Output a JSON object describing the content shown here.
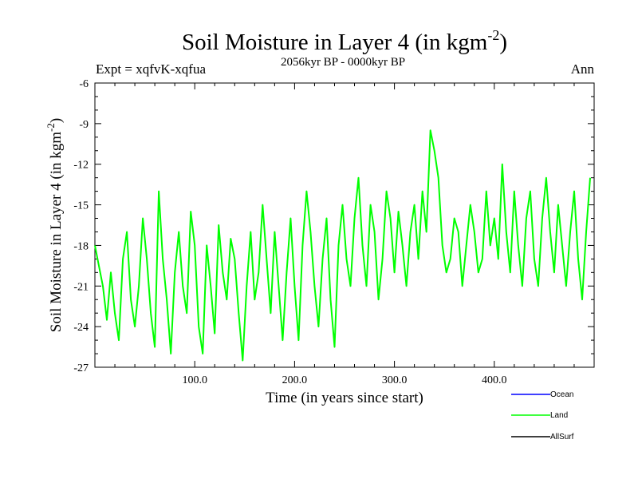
{
  "chart_data": {
    "type": "line",
    "title": "Soil Moisture in Layer 4 (in kgm",
    "title_sup": "-2",
    "title_close": ")",
    "subtitle": "2056kyr BP - 0000kyr BP",
    "experiment": "Expt = xqfvK-xqfua",
    "season": "Ann",
    "xlabel": "Time (in years since start)",
    "ylabel": "Soil Moisture in Layer 4 (in kgm",
    "ylabel_sup": "-2",
    "ylabel_close": ")",
    "xlim": [
      0,
      500
    ],
    "ylim": [
      -27,
      -6
    ],
    "x_ticks": [
      100,
      200,
      300,
      400
    ],
    "x_tick_labels": [
      "100.0",
      "200.0",
      "300.0",
      "400.0"
    ],
    "y_ticks": [
      -27,
      -24,
      -21,
      -18,
      -15,
      -12,
      -9,
      -6
    ],
    "y_tick_labels": [
      "-27",
      "-24",
      "-21",
      "-18",
      "-15",
      "-12",
      "-9",
      "-6"
    ],
    "legend": [
      "Ocean",
      "Land",
      "AllSurf"
    ],
    "series": [
      {
        "name": "Ocean",
        "color": "#0000ff",
        "values": []
      },
      {
        "name": "Land",
        "color": "#00ff00",
        "values": [
          [
            0,
            -18
          ],
          [
            4,
            -19.5
          ],
          [
            8,
            -21
          ],
          [
            12,
            -23.5
          ],
          [
            16,
            -20
          ],
          [
            20,
            -23
          ],
          [
            24,
            -25
          ],
          [
            28,
            -19
          ],
          [
            32,
            -17
          ],
          [
            36,
            -22
          ],
          [
            40,
            -24
          ],
          [
            44,
            -21
          ],
          [
            48,
            -16
          ],
          [
            52,
            -19
          ],
          [
            56,
            -23
          ],
          [
            60,
            -25.5
          ],
          [
            64,
            -14
          ],
          [
            68,
            -19
          ],
          [
            72,
            -22
          ],
          [
            76,
            -26
          ],
          [
            80,
            -20
          ],
          [
            84,
            -17
          ],
          [
            88,
            -21
          ],
          [
            92,
            -23
          ],
          [
            96,
            -15.5
          ],
          [
            100,
            -18
          ],
          [
            104,
            -24
          ],
          [
            108,
            -26
          ],
          [
            112,
            -18
          ],
          [
            116,
            -21
          ],
          [
            120,
            -24.5
          ],
          [
            124,
            -16.5
          ],
          [
            128,
            -20
          ],
          [
            132,
            -22
          ],
          [
            136,
            -17.5
          ],
          [
            140,
            -19
          ],
          [
            144,
            -23
          ],
          [
            148,
            -26.5
          ],
          [
            152,
            -21
          ],
          [
            156,
            -17
          ],
          [
            160,
            -22
          ],
          [
            164,
            -20
          ],
          [
            168,
            -15
          ],
          [
            172,
            -19
          ],
          [
            176,
            -23
          ],
          [
            180,
            -17
          ],
          [
            184,
            -21
          ],
          [
            188,
            -25
          ],
          [
            192,
            -20
          ],
          [
            196,
            -16
          ],
          [
            200,
            -21
          ],
          [
            204,
            -25
          ],
          [
            208,
            -18
          ],
          [
            212,
            -14
          ],
          [
            216,
            -17
          ],
          [
            220,
            -21
          ],
          [
            224,
            -24
          ],
          [
            228,
            -19
          ],
          [
            232,
            -16
          ],
          [
            236,
            -22
          ],
          [
            240,
            -25.5
          ],
          [
            244,
            -18
          ],
          [
            248,
            -15
          ],
          [
            252,
            -19
          ],
          [
            256,
            -21
          ],
          [
            260,
            -16
          ],
          [
            264,
            -13
          ],
          [
            268,
            -18
          ],
          [
            272,
            -21
          ],
          [
            276,
            -15
          ],
          [
            280,
            -17
          ],
          [
            284,
            -22
          ],
          [
            288,
            -19
          ],
          [
            292,
            -14
          ],
          [
            296,
            -16
          ],
          [
            300,
            -20
          ],
          [
            304,
            -15.5
          ],
          [
            308,
            -18
          ],
          [
            312,
            -21
          ],
          [
            316,
            -17
          ],
          [
            320,
            -15
          ],
          [
            324,
            -19
          ],
          [
            328,
            -14
          ],
          [
            332,
            -17
          ],
          [
            336,
            -9.5
          ],
          [
            340,
            -11
          ],
          [
            344,
            -13
          ],
          [
            348,
            -18
          ],
          [
            352,
            -20
          ],
          [
            356,
            -19
          ],
          [
            360,
            -16
          ],
          [
            364,
            -17
          ],
          [
            368,
            -21
          ],
          [
            372,
            -18
          ],
          [
            376,
            -15
          ],
          [
            380,
            -17
          ],
          [
            384,
            -20
          ],
          [
            388,
            -19
          ],
          [
            392,
            -14
          ],
          [
            396,
            -18
          ],
          [
            400,
            -16
          ],
          [
            404,
            -19
          ],
          [
            408,
            -12
          ],
          [
            412,
            -17
          ],
          [
            416,
            -20
          ],
          [
            420,
            -14
          ],
          [
            424,
            -18
          ],
          [
            428,
            -21
          ],
          [
            432,
            -16
          ],
          [
            436,
            -14
          ],
          [
            440,
            -19
          ],
          [
            444,
            -21
          ],
          [
            448,
            -16
          ],
          [
            452,
            -13
          ],
          [
            456,
            -17
          ],
          [
            460,
            -20
          ],
          [
            464,
            -15
          ],
          [
            468,
            -18
          ],
          [
            472,
            -21
          ],
          [
            476,
            -17
          ],
          [
            480,
            -14
          ],
          [
            484,
            -19
          ],
          [
            488,
            -22
          ],
          [
            492,
            -17
          ],
          [
            496,
            -13
          ]
        ]
      },
      {
        "name": "AllSurf",
        "color": "#000000",
        "values": []
      }
    ]
  }
}
